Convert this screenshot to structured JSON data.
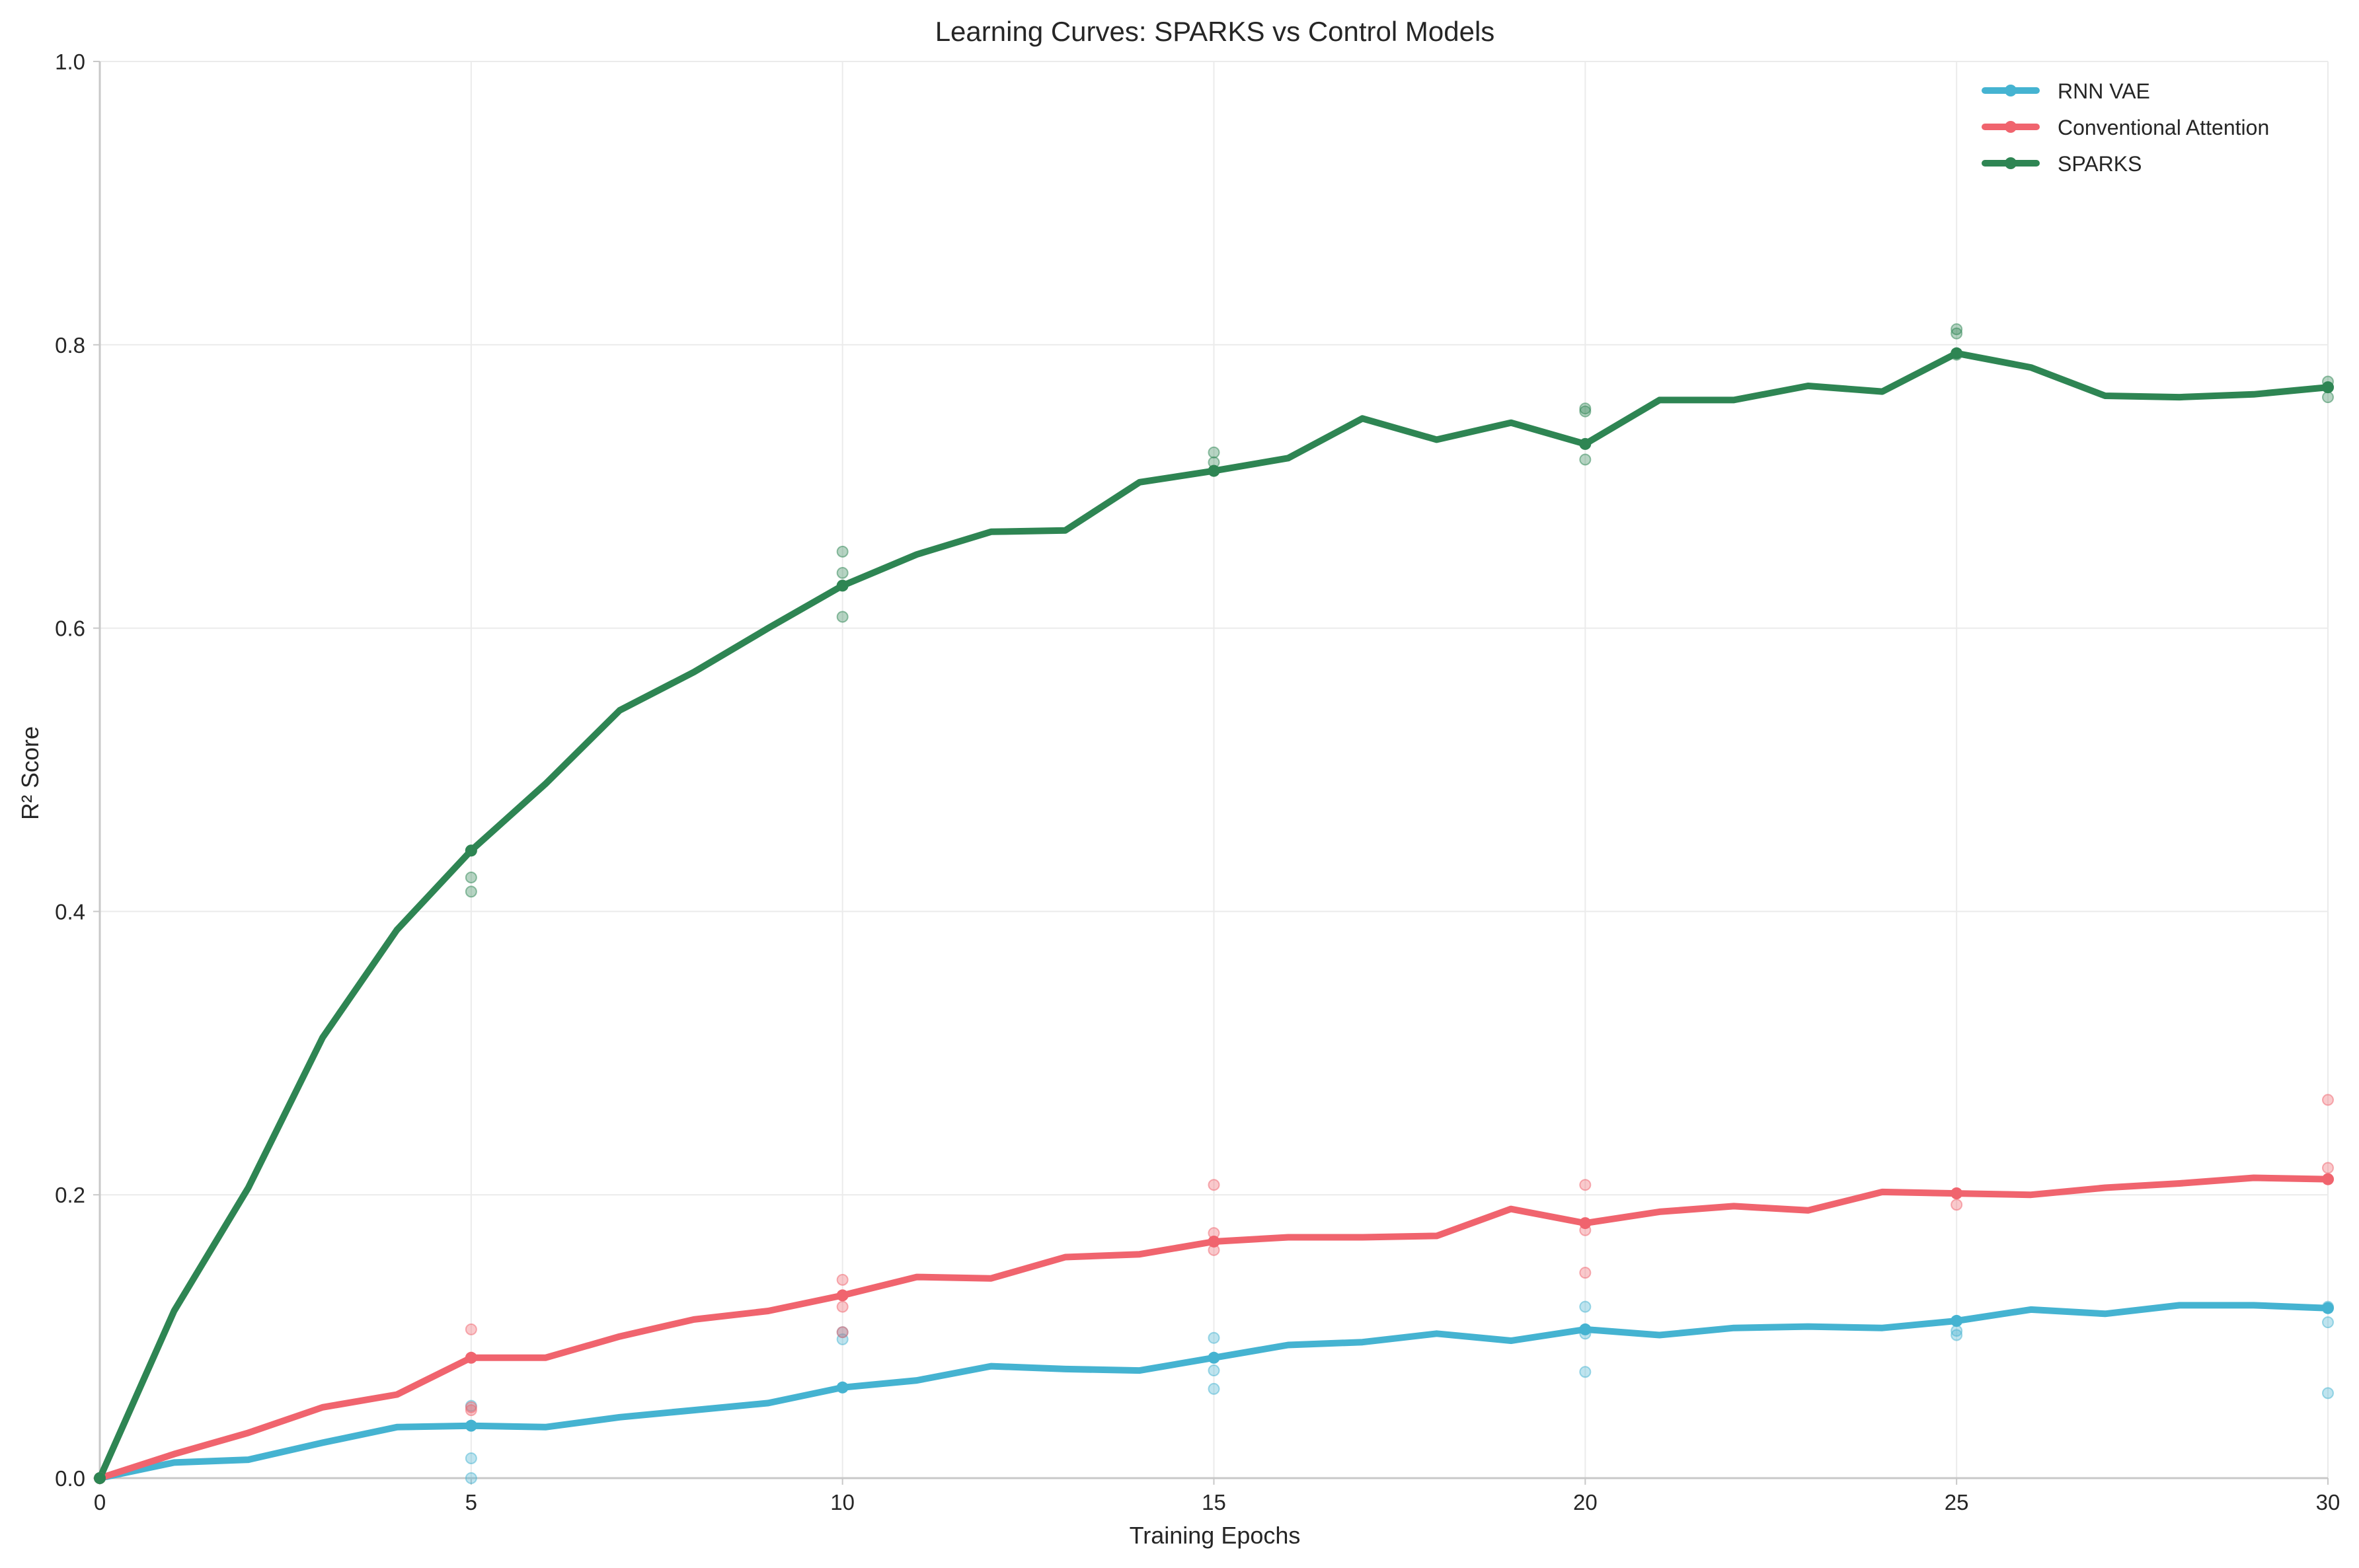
{
  "chart_data": {
    "type": "line",
    "title": "Learning Curves: SPARKS vs Control Models",
    "xlabel": "Training Epochs",
    "ylabel": "R² Score",
    "xlim": [
      0,
      30
    ],
    "ylim": [
      0,
      1.0
    ],
    "xticks": [
      0,
      5,
      10,
      15,
      20,
      25,
      30
    ],
    "xtick_labels": [
      "0",
      "5",
      "10",
      "15",
      "20",
      "25",
      "30"
    ],
    "yticks": [
      0.0,
      0.2,
      0.4,
      0.6,
      0.8,
      1.0
    ],
    "ytick_labels": [
      "0.0",
      "0.2",
      "0.4",
      "0.6",
      "0.8",
      "1.0"
    ],
    "grid": true,
    "legend_position": "top-right",
    "x": [
      0,
      1,
      2,
      3,
      4,
      5,
      6,
      7,
      8,
      9,
      10,
      11,
      12,
      13,
      14,
      15,
      16,
      17,
      18,
      19,
      20,
      21,
      22,
      23,
      24,
      25,
      26,
      27,
      28,
      29,
      30
    ],
    "marker_x": [
      0,
      5,
      10,
      15,
      20,
      25,
      30
    ],
    "series": [
      {
        "name": "RNN VAE",
        "color": "#45b3d1",
        "values": [
          0.0,
          0.011,
          0.013,
          0.025,
          0.036,
          0.037,
          0.036,
          0.043,
          0.048,
          0.053,
          0.064,
          0.069,
          0.079,
          0.077,
          0.076,
          0.085,
          0.094,
          0.096,
          0.102,
          0.097,
          0.105,
          0.101,
          0.106,
          0.107,
          0.106,
          0.111,
          0.119,
          0.116,
          0.122,
          0.122,
          0.12
        ],
        "runs": [
          {
            "x": 5,
            "y": [
              0.051,
              0.014,
              -0.001
            ]
          },
          {
            "x": 10,
            "y": [
              0.098,
              0.103
            ]
          },
          {
            "x": 15,
            "y": [
              0.099,
              0.076,
              0.063
            ]
          },
          {
            "x": 20,
            "y": [
              0.121,
              0.075,
              0.102
            ]
          },
          {
            "x": 25,
            "y": [
              0.101,
              0.104,
              0.111
            ]
          },
          {
            "x": 30,
            "y": [
              0.11,
              0.06,
              0.121
            ]
          }
        ]
      },
      {
        "name": "Conventional Attention",
        "color": "#f0646e",
        "values": [
          0.0,
          0.017,
          0.032,
          0.05,
          0.059,
          0.085,
          0.085,
          0.1,
          0.112,
          0.118,
          0.129,
          0.142,
          0.141,
          0.156,
          0.158,
          0.167,
          0.17,
          0.17,
          0.171,
          0.19,
          0.18,
          0.188,
          0.192,
          0.189,
          0.202,
          0.201,
          0.2,
          0.205,
          0.208,
          0.212,
          0.211
        ],
        "runs": [
          {
            "x": 5,
            "y": [
              0.105,
              0.048,
              0.05
            ]
          },
          {
            "x": 10,
            "y": [
              0.14,
              0.121,
              0.103
            ]
          },
          {
            "x": 15,
            "y": [
              0.207,
              0.173,
              0.161
            ]
          },
          {
            "x": 20,
            "y": [
              0.207,
              0.145,
              0.175
            ]
          },
          {
            "x": 25,
            "y": [
              0.193,
              0.201
            ]
          },
          {
            "x": 30,
            "y": [
              0.267,
              0.219,
              0.211
            ]
          }
        ]
      },
      {
        "name": "SPARKS",
        "color": "#2e8553",
        "values": [
          0.0,
          0.118,
          0.205,
          0.311,
          0.387,
          0.443,
          0.49,
          0.542,
          0.569,
          0.6,
          0.63,
          0.652,
          0.668,
          0.669,
          0.703,
          0.711,
          0.72,
          0.748,
          0.733,
          0.745,
          0.73,
          0.761,
          0.761,
          0.771,
          0.767,
          0.794,
          0.784,
          0.764,
          0.763,
          0.765,
          0.77
        ],
        "runs": [
          {
            "x": 5,
            "y": [
              0.424,
              0.414,
              0.443
            ]
          },
          {
            "x": 10,
            "y": [
              0.654,
              0.639,
              0.608
            ]
          },
          {
            "x": 15,
            "y": [
              0.724,
              0.717,
              0.711
            ]
          },
          {
            "x": 20,
            "y": [
              0.755,
              0.753,
              0.719
            ]
          },
          {
            "x": 25,
            "y": [
              0.811,
              0.808,
              0.793
            ]
          },
          {
            "x": 30,
            "y": [
              0.774,
              0.763,
              0.77
            ]
          }
        ]
      }
    ]
  }
}
